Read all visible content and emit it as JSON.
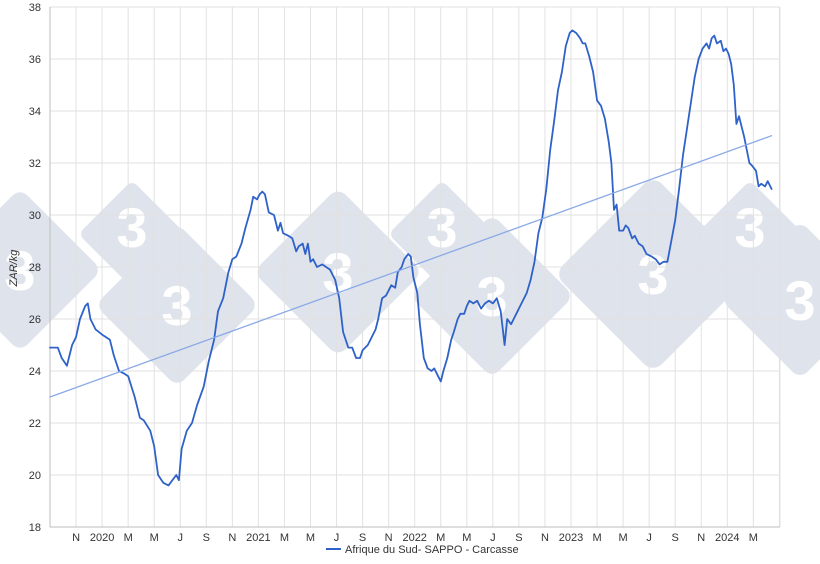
{
  "chart_data": {
    "type": "line",
    "ylabel": "ZAR/kg",
    "xlabel": "",
    "ylim": [
      18,
      38
    ],
    "yticks": [
      18,
      20,
      22,
      24,
      26,
      28,
      30,
      32,
      34,
      36,
      38
    ],
    "grid": {
      "horizontal": true,
      "vertical": true
    },
    "x_tick_labels": [
      "N",
      "2020",
      "M",
      "M",
      "J",
      "S",
      "N",
      "2021",
      "M",
      "M",
      "J",
      "S",
      "N",
      "2022",
      "M",
      "M",
      "J",
      "S",
      "N",
      "2023",
      "M",
      "M",
      "J",
      "S",
      "N",
      "2024",
      "M"
    ],
    "x_range_months": [
      0,
      27
    ],
    "legend": {
      "position": "bottom-center"
    },
    "series": [
      {
        "name": "Afrique du Sud- SAPPO - Carcasse",
        "color": "#2f62c8",
        "points": [
          [
            0.0,
            24.9
          ],
          [
            0.3,
            24.9
          ],
          [
            0.45,
            24.5
          ],
          [
            0.65,
            24.2
          ],
          [
            0.85,
            25.0
          ],
          [
            1.0,
            25.3
          ],
          [
            1.15,
            26.0
          ],
          [
            1.35,
            26.5
          ],
          [
            1.45,
            26.6
          ],
          [
            1.55,
            26.0
          ],
          [
            1.75,
            25.6
          ],
          [
            2.0,
            25.4
          ],
          [
            2.3,
            25.2
          ],
          [
            2.45,
            24.6
          ],
          [
            2.65,
            24.0
          ],
          [
            2.85,
            23.9
          ],
          [
            3.0,
            23.8
          ],
          [
            3.25,
            23.0
          ],
          [
            3.45,
            22.2
          ],
          [
            3.6,
            22.1
          ],
          [
            3.85,
            21.7
          ],
          [
            4.0,
            21.1
          ],
          [
            4.15,
            20.0
          ],
          [
            4.35,
            19.7
          ],
          [
            4.55,
            19.6
          ],
          [
            4.7,
            19.8
          ],
          [
            4.85,
            20.0
          ],
          [
            4.95,
            19.8
          ],
          [
            5.05,
            21.0
          ],
          [
            5.25,
            21.7
          ],
          [
            5.45,
            22.0
          ],
          [
            5.65,
            22.7
          ],
          [
            5.9,
            23.4
          ],
          [
            6.1,
            24.4
          ],
          [
            6.3,
            25.2
          ],
          [
            6.45,
            26.3
          ],
          [
            6.65,
            26.8
          ],
          [
            6.85,
            27.8
          ],
          [
            7.0,
            28.3
          ],
          [
            7.15,
            28.4
          ],
          [
            7.35,
            28.9
          ],
          [
            7.5,
            29.5
          ],
          [
            7.7,
            30.2
          ],
          [
            7.8,
            30.7
          ],
          [
            7.95,
            30.6
          ],
          [
            8.05,
            30.8
          ],
          [
            8.15,
            30.9
          ],
          [
            8.25,
            30.8
          ],
          [
            8.4,
            30.1
          ],
          [
            8.6,
            30.0
          ],
          [
            8.75,
            29.4
          ],
          [
            8.85,
            29.7
          ],
          [
            8.95,
            29.3
          ],
          [
            9.15,
            29.2
          ],
          [
            9.3,
            29.1
          ],
          [
            9.45,
            28.6
          ],
          [
            9.55,
            28.8
          ],
          [
            9.7,
            28.9
          ],
          [
            9.8,
            28.5
          ],
          [
            9.9,
            28.9
          ],
          [
            10.0,
            28.2
          ],
          [
            10.1,
            28.3
          ],
          [
            10.25,
            28.0
          ],
          [
            10.45,
            28.1
          ],
          [
            10.6,
            28.0
          ],
          [
            10.75,
            27.9
          ],
          [
            10.95,
            27.5
          ],
          [
            11.1,
            26.8
          ],
          [
            11.25,
            25.5
          ],
          [
            11.45,
            24.9
          ],
          [
            11.6,
            24.9
          ],
          [
            11.75,
            24.5
          ],
          [
            11.9,
            24.5
          ],
          [
            12.0,
            24.8
          ],
          [
            12.2,
            25.0
          ],
          [
            12.35,
            25.3
          ],
          [
            12.5,
            25.6
          ],
          [
            12.6,
            26.0
          ],
          [
            12.75,
            26.8
          ],
          [
            12.9,
            26.9
          ],
          [
            13.0,
            27.1
          ],
          [
            13.1,
            27.3
          ],
          [
            13.25,
            27.2
          ],
          [
            13.35,
            27.8
          ],
          [
            13.5,
            28.0
          ],
          [
            13.6,
            28.3
          ],
          [
            13.75,
            28.5
          ],
          [
            13.85,
            28.4
          ],
          [
            13.95,
            27.6
          ],
          [
            14.1,
            27.0
          ],
          [
            14.2,
            25.8
          ],
          [
            14.35,
            24.5
          ],
          [
            14.5,
            24.1
          ],
          [
            14.65,
            24.0
          ],
          [
            14.75,
            24.1
          ],
          [
            14.9,
            23.8
          ],
          [
            15.0,
            23.6
          ],
          [
            15.1,
            24.0
          ],
          [
            15.25,
            24.5
          ],
          [
            15.4,
            25.2
          ],
          [
            15.5,
            25.5
          ],
          [
            15.65,
            26.0
          ],
          [
            15.75,
            26.2
          ],
          [
            15.9,
            26.2
          ],
          [
            16.0,
            26.5
          ],
          [
            16.1,
            26.7
          ],
          [
            16.25,
            26.6
          ],
          [
            16.4,
            26.7
          ],
          [
            16.55,
            26.4
          ],
          [
            16.7,
            26.6
          ],
          [
            16.85,
            26.7
          ],
          [
            17.0,
            26.6
          ],
          [
            17.15,
            26.8
          ],
          [
            17.3,
            26.3
          ],
          [
            17.45,
            25.0
          ],
          [
            17.55,
            26.0
          ],
          [
            17.7,
            25.8
          ],
          [
            17.8,
            26.0
          ],
          [
            17.95,
            26.3
          ],
          [
            18.1,
            26.6
          ],
          [
            18.3,
            27.0
          ],
          [
            18.45,
            27.5
          ],
          [
            18.6,
            28.2
          ],
          [
            18.75,
            29.3
          ],
          [
            18.9,
            29.9
          ],
          [
            19.05,
            31.0
          ],
          [
            19.2,
            32.5
          ],
          [
            19.35,
            33.6
          ],
          [
            19.5,
            34.8
          ],
          [
            19.65,
            35.5
          ],
          [
            19.8,
            36.5
          ],
          [
            19.95,
            37.0
          ],
          [
            20.05,
            37.1
          ],
          [
            20.2,
            37.0
          ],
          [
            20.35,
            36.8
          ],
          [
            20.45,
            36.6
          ],
          [
            20.55,
            36.6
          ],
          [
            20.7,
            36.1
          ],
          [
            20.85,
            35.5
          ],
          [
            21.0,
            34.4
          ],
          [
            21.15,
            34.2
          ],
          [
            21.3,
            33.7
          ],
          [
            21.45,
            32.8
          ],
          [
            21.55,
            32.0
          ],
          [
            21.65,
            30.2
          ],
          [
            21.75,
            30.4
          ],
          [
            21.85,
            29.4
          ],
          [
            22.0,
            29.4
          ],
          [
            22.1,
            29.6
          ],
          [
            22.2,
            29.5
          ],
          [
            22.35,
            29.1
          ],
          [
            22.45,
            29.2
          ],
          [
            22.6,
            28.9
          ],
          [
            22.75,
            28.8
          ],
          [
            22.9,
            28.5
          ],
          [
            23.1,
            28.4
          ],
          [
            23.25,
            28.3
          ],
          [
            23.4,
            28.1
          ],
          [
            23.55,
            28.2
          ],
          [
            23.7,
            28.2
          ],
          [
            23.85,
            29.0
          ],
          [
            24.0,
            29.8
          ],
          [
            24.15,
            31.0
          ],
          [
            24.3,
            32.3
          ],
          [
            24.45,
            33.3
          ],
          [
            24.6,
            34.3
          ],
          [
            24.75,
            35.3
          ],
          [
            24.9,
            36.0
          ],
          [
            25.05,
            36.4
          ],
          [
            25.2,
            36.6
          ],
          [
            25.3,
            36.4
          ],
          [
            25.4,
            36.8
          ],
          [
            25.5,
            36.9
          ],
          [
            25.6,
            36.6
          ],
          [
            25.75,
            36.7
          ],
          [
            25.85,
            36.3
          ],
          [
            25.95,
            36.4
          ],
          [
            26.05,
            36.2
          ],
          [
            26.15,
            35.8
          ],
          [
            26.25,
            35.0
          ],
          [
            26.35,
            33.5
          ],
          [
            26.45,
            33.8
          ],
          [
            26.55,
            33.4
          ],
          [
            26.65,
            33.0
          ],
          [
            26.75,
            32.5
          ],
          [
            26.85,
            32.0
          ],
          [
            26.95,
            31.9
          ],
          [
            27.1,
            31.7
          ],
          [
            27.2,
            31.1
          ],
          [
            27.3,
            31.2
          ],
          [
            27.45,
            31.1
          ],
          [
            27.55,
            31.3
          ],
          [
            27.7,
            31.0
          ]
        ]
      },
      {
        "name": "",
        "kind": "linear-trend",
        "color": "#8aa9e6",
        "points": [
          [
            0.0,
            23.0
          ],
          [
            27.7,
            33.05
          ]
        ]
      }
    ]
  },
  "watermark": {
    "label": "3",
    "color": "#dfe3ec"
  }
}
